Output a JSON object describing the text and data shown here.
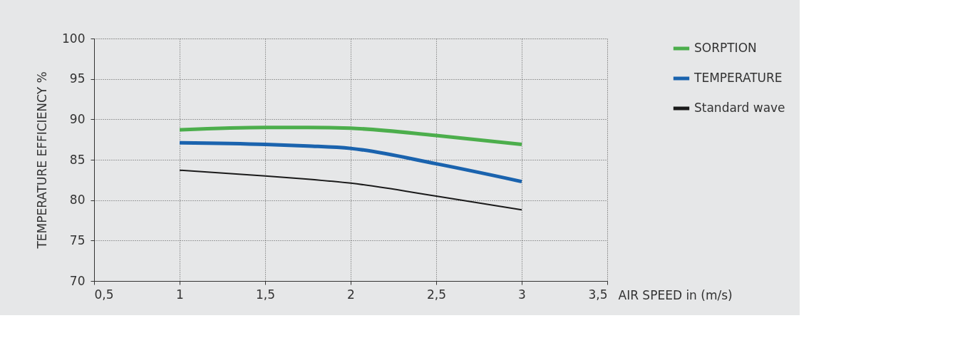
{
  "chart_data": {
    "type": "line",
    "ylabel": "TEMPERATURE EFFICIENCY %",
    "xlabel": "AIR SPEED in (m/s)",
    "x": [
      1,
      1.5,
      1.75,
      2,
      2.5,
      3
    ],
    "series": [
      {
        "name": "SORPTION",
        "color": "#4cae4c",
        "values": [
          88.7,
          89.0,
          89.0,
          88.9,
          88.0,
          86.9
        ]
      },
      {
        "name": "TEMPERATURE",
        "color": "#1a63ae",
        "values": [
          87.1,
          86.9,
          86.7,
          86.4,
          84.5,
          82.3
        ]
      },
      {
        "name": "Standard wave",
        "color": "#1a1a1a",
        "values": [
          83.7,
          83.0,
          82.6,
          82.1,
          80.5,
          78.8
        ]
      }
    ],
    "xlim": [
      0.5,
      3.5
    ],
    "ylim": [
      70,
      100
    ],
    "xticks": [
      {
        "value": 0.5,
        "label": "0,5"
      },
      1,
      {
        "value": 1.5,
        "label": "1,5"
      },
      2,
      {
        "value": 2.5,
        "label": "2,5"
      },
      3,
      {
        "value": 3.5,
        "label": "3,5"
      }
    ],
    "yticks": [
      70,
      75,
      80,
      85,
      90,
      95,
      100
    ],
    "grid": true,
    "legend": "top right",
    "marker": "none",
    "line_style": "solid"
  }
}
